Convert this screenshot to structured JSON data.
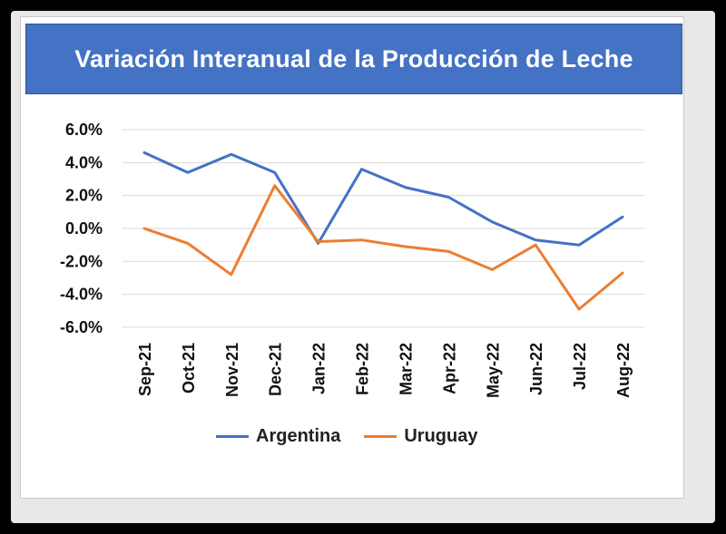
{
  "chart_data": {
    "type": "line",
    "title": "Variación Interanual de la Producción de Leche",
    "categories": [
      "Sep-21",
      "Oct-21",
      "Nov-21",
      "Dec-21",
      "Jan-22",
      "Feb-22",
      "Mar-22",
      "Apr-22",
      "May-22",
      "Jun-22",
      "Jul-22",
      "Aug-22"
    ],
    "y_ticks": [
      "6.0%",
      "4.0%",
      "2.0%",
      "0.0%",
      "-2.0%",
      "-4.0%",
      "-6.0%"
    ],
    "ylim": [
      -6,
      6
    ],
    "y_unit": "%",
    "grid": true,
    "legend_position": "bottom",
    "series": [
      {
        "name": "Argentina",
        "color": "#4472c4",
        "values": [
          4.6,
          3.4,
          4.5,
          3.4,
          -0.9,
          3.6,
          2.5,
          1.9,
          0.4,
          -0.7,
          -1.0,
          0.7
        ]
      },
      {
        "name": "Uruguay",
        "color": "#ed7d31",
        "values": [
          0.0,
          -0.9,
          -2.8,
          2.6,
          -0.8,
          -0.7,
          -1.1,
          -1.4,
          -2.5,
          -1.0,
          -4.9,
          -2.7
        ]
      }
    ]
  }
}
